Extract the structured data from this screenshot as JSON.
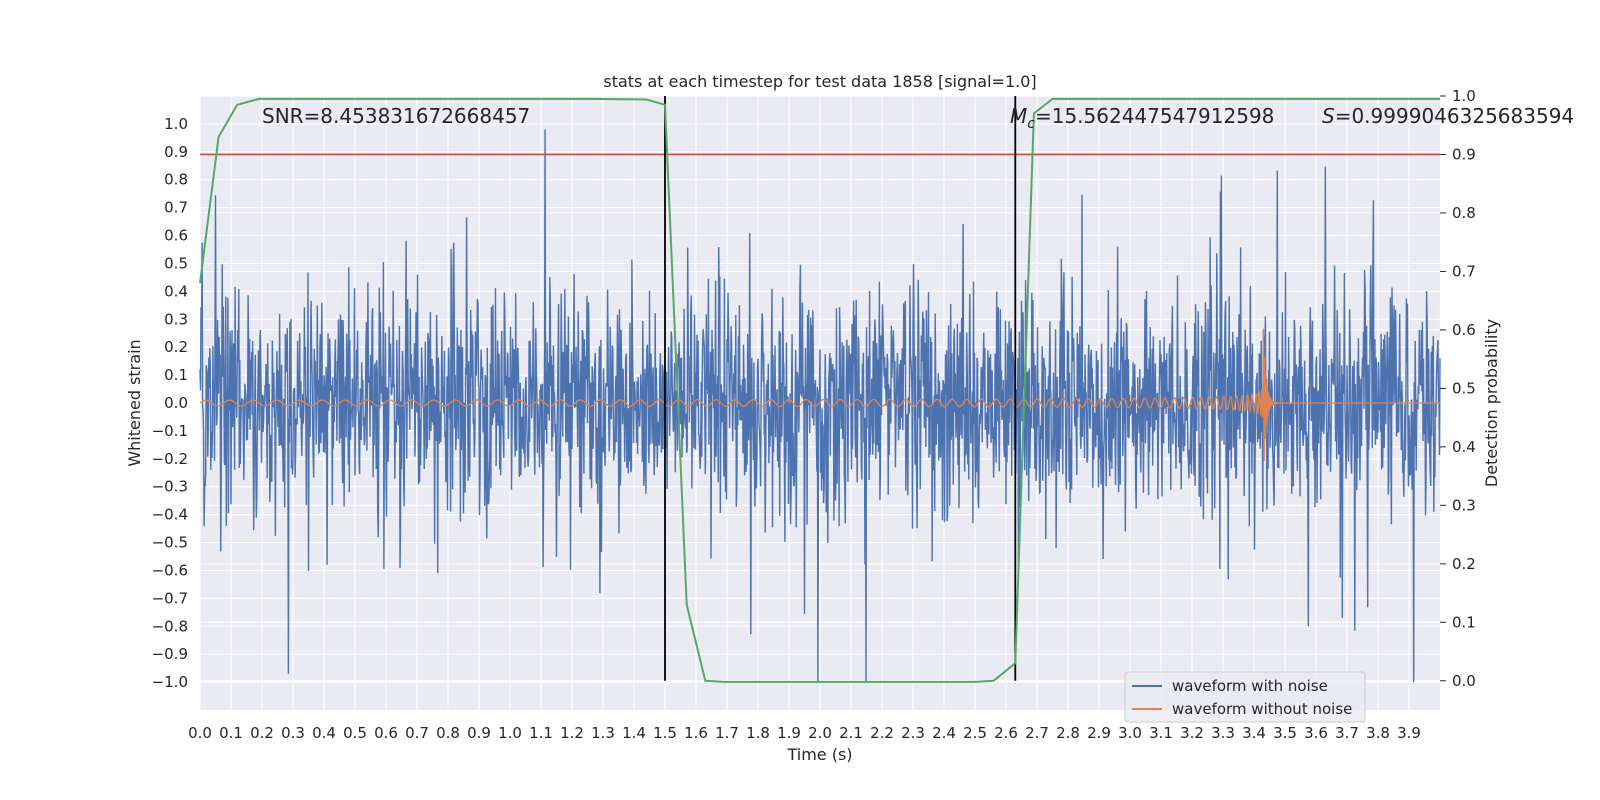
{
  "chart_data": {
    "type": "line",
    "title": "stats at each timestep for test data 1858 [signal=1.0]",
    "xlabel": "Time (s)",
    "ylabel_left": "Whitened strain",
    "ylabel_right": "Detection probability",
    "xlim": [
      0.0,
      4.0
    ],
    "ylim_left": [
      -1.1,
      1.1
    ],
    "ylim_right": [
      -0.05,
      1.0
    ],
    "x_ticks": [
      "0.0",
      "0.1",
      "0.2",
      "0.3",
      "0.4",
      "0.5",
      "0.6",
      "0.7",
      "0.8",
      "0.9",
      "1.0",
      "1.1",
      "1.2",
      "1.3",
      "1.4",
      "1.5",
      "1.6",
      "1.7",
      "1.8",
      "1.9",
      "2.0",
      "2.1",
      "2.2",
      "2.3",
      "2.4",
      "2.5",
      "2.6",
      "2.7",
      "2.8",
      "2.9",
      "3.0",
      "3.1",
      "3.2",
      "3.3",
      "3.4",
      "3.5",
      "3.6",
      "3.7",
      "3.8",
      "3.9"
    ],
    "y_ticks_left": [
      "1.0",
      "0.9",
      "0.8",
      "0.7",
      "0.6",
      "0.5",
      "0.4",
      "0.3",
      "0.2",
      "0.1",
      "0.0",
      "−0.1",
      "−0.2",
      "−0.3",
      "−0.4",
      "−0.5",
      "−0.6",
      "−0.7",
      "−0.8",
      "−0.9",
      "−1.0"
    ],
    "y_ticks_right": [
      "1.0",
      "0.9",
      "0.8",
      "0.7",
      "0.6",
      "0.5",
      "0.4",
      "0.3",
      "0.2",
      "0.1",
      "0.0"
    ],
    "grid": true,
    "legend_position": "lower-right",
    "annotations": {
      "snr_text": "SNR=8.453831672668457",
      "mc_symbol": "M",
      "mc_sub": "c",
      "mc_value": "=15.562447547912598",
      "s_symbol": "S",
      "s_value": "=0.9999046325683594"
    },
    "threshold_line": {
      "axis": "right",
      "value": 0.9,
      "color": "#c44e52"
    },
    "vertical_lines": [
      {
        "x": 1.5,
        "color": "#000000"
      },
      {
        "x": 2.63,
        "color": "#000000"
      }
    ],
    "series": [
      {
        "name": "waveform with noise",
        "color": "#4c72b0",
        "axis": "left",
        "description_values": {
          "noise_amplitude_typical": 0.35,
          "peak_max": 0.98,
          "peak_min": -1.0
        }
      },
      {
        "name": "waveform without noise",
        "color": "#dd8452",
        "axis": "left",
        "chirp": {
          "start_amplitude": 0.01,
          "peak_time": 3.43,
          "peak_amplitude": 0.4,
          "trough_amplitude": -0.3
        }
      },
      {
        "color": "#55a868",
        "axis": "right",
        "x": [
          0.0,
          0.06,
          0.12,
          0.19,
          0.25,
          0.32,
          0.5,
          0.75,
          1.0,
          1.25,
          1.44,
          1.5,
          1.57,
          1.63,
          1.69,
          1.75,
          2.0,
          2.25,
          2.5,
          2.56,
          2.63,
          2.69,
          2.75,
          2.8,
          3.0,
          3.25,
          3.5,
          3.75,
          4.0
        ],
        "y": [
          0.68,
          0.93,
          0.985,
          0.995,
          0.995,
          0.995,
          0.995,
          0.995,
          0.995,
          0.995,
          0.994,
          0.985,
          0.13,
          0.0,
          -0.002,
          -0.002,
          -0.002,
          -0.002,
          -0.002,
          0.0,
          0.03,
          0.97,
          0.995,
          0.995,
          0.995,
          0.995,
          0.995,
          0.995,
          0.995
        ]
      }
    ]
  }
}
